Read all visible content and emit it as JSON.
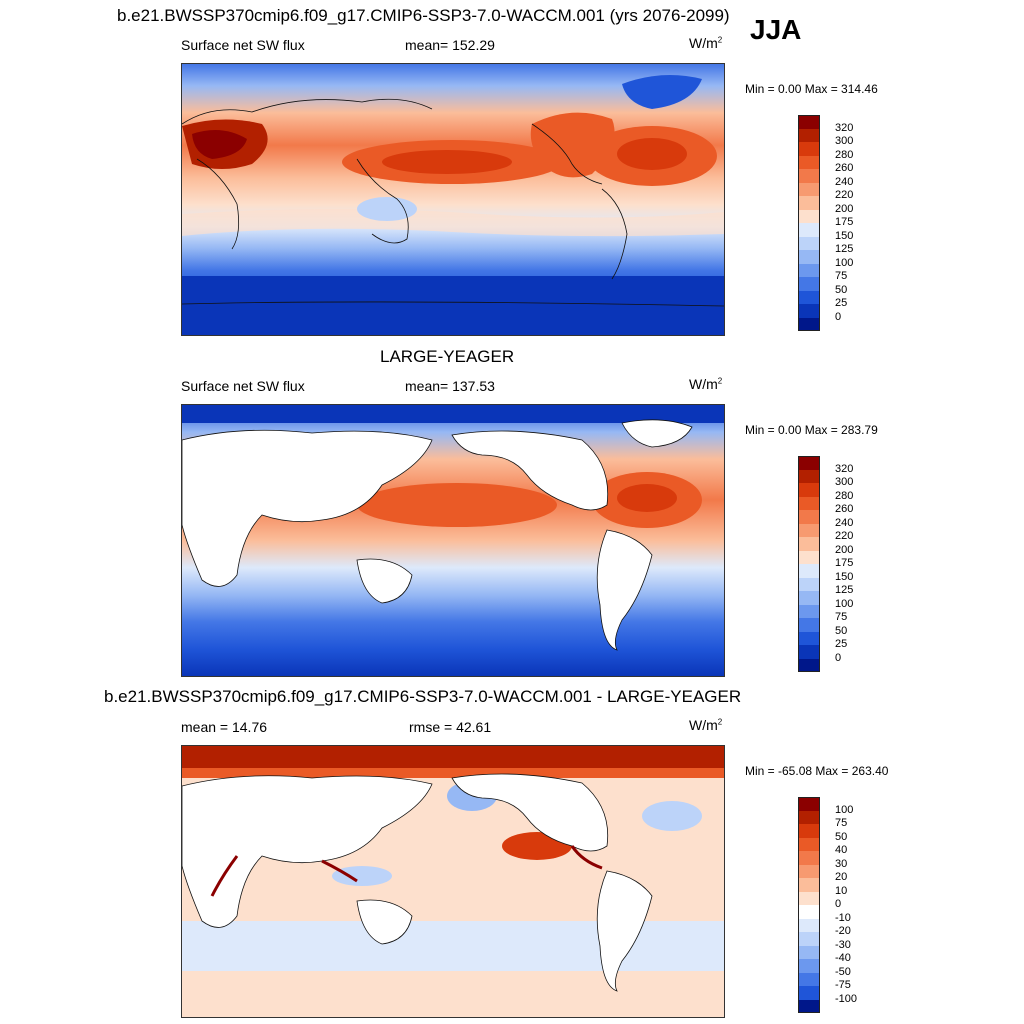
{
  "season": "JJA",
  "panels": [
    {
      "title": "b.e21.BWSSP370cmip6.f09_g17.CMIP6-SSP3-7.0-WACCM.001 (yrs 2076-2099)",
      "left_label": "Surface net SW flux",
      "center_label": "mean= 152.29",
      "units": "W/m",
      "units_sup": "2",
      "minmax": "Min =   0.00 Max = 314.46",
      "colorbar_labels": [
        "320",
        "300",
        "280",
        "260",
        "240",
        "220",
        "200",
        "175",
        "150",
        "125",
        "100",
        "75",
        "50",
        "25",
        "0"
      ],
      "colorbar_colors": [
        "#8b0000",
        "#b22000",
        "#d83a0c",
        "#ea5a26",
        "#f2794a",
        "#f79a70",
        "#fbbd9a",
        "#fde0cd",
        "#dde9fb",
        "#bcd3f9",
        "#96b8f4",
        "#6c98ee",
        "#4477e6",
        "#1f55d8",
        "#0a35b8",
        "#00178a"
      ],
      "land_filled": true
    },
    {
      "title": "LARGE-YEAGER",
      "left_label": "Surface net SW flux",
      "center_label": "mean= 137.53",
      "units": "W/m",
      "units_sup": "2",
      "minmax": "Min =   0.00 Max = 283.79",
      "colorbar_labels": [
        "320",
        "300",
        "280",
        "260",
        "240",
        "220",
        "200",
        "175",
        "150",
        "125",
        "100",
        "75",
        "50",
        "25",
        "0"
      ],
      "colorbar_colors": [
        "#8b0000",
        "#b22000",
        "#d83a0c",
        "#ea5a26",
        "#f2794a",
        "#f79a70",
        "#fbbd9a",
        "#fde0cd",
        "#dde9fb",
        "#bcd3f9",
        "#96b8f4",
        "#6c98ee",
        "#4477e6",
        "#1f55d8",
        "#0a35b8",
        "#00178a"
      ],
      "land_filled": false
    },
    {
      "title": "b.e21.BWSSP370cmip6.f09_g17.CMIP6-SSP3-7.0-WACCM.001 - LARGE-YEAGER",
      "left_label": "mean =  14.76",
      "center_label": "rmse =  42.61",
      "units": "W/m",
      "units_sup": "2",
      "minmax": "Min = -65.08 Max = 263.40",
      "colorbar_labels": [
        "100",
        "75",
        "50",
        "40",
        "30",
        "20",
        "10",
        "0",
        "-10",
        "-20",
        "-30",
        "-40",
        "-50",
        "-75",
        "-100"
      ],
      "colorbar_colors": [
        "#8b0000",
        "#b22000",
        "#d83a0c",
        "#ea5a26",
        "#f2794a",
        "#f79a70",
        "#fbbd9a",
        "#fde0cd",
        "#ffffff",
        "#dde9fb",
        "#bcd3f9",
        "#96b8f4",
        "#6c98ee",
        "#4477e6",
        "#1f55d8",
        "#00178a"
      ],
      "land_filled": false
    }
  ]
}
